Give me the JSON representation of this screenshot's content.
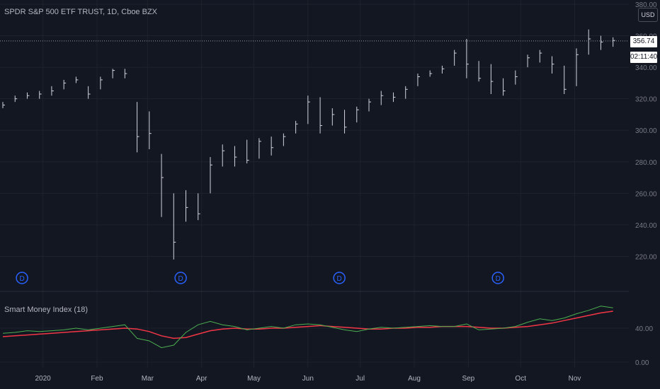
{
  "header": {
    "title": "SPDR S&P 500 ETF TRUST, 1D, Cboe BZX",
    "currency": "USD",
    "last_price": "356.74",
    "countdown": "02:11:40"
  },
  "indicator": {
    "title": "Smart Money Index (18)",
    "y_ticks": [
      "40.00",
      "0.00"
    ]
  },
  "colors": {
    "background": "#131722",
    "bars": "#d1d4dc",
    "smi_line": "#4caf50",
    "smi_ma": "#f23645",
    "dividend_marker": "#2962ff"
  },
  "dividend_markers": [
    "D",
    "D",
    "D",
    "D"
  ],
  "chart_data": [
    {
      "type": "ohlc",
      "x_ticks": [
        "2020",
        "Feb",
        "Mar",
        "Apr",
        "May",
        "Jun",
        "Jul",
        "Aug",
        "Sep",
        "Oct",
        "Nov"
      ],
      "y_ticks": [
        "380.00",
        "360.00",
        "340.00",
        "320.00",
        "300.00",
        "280.00",
        "260.00",
        "240.00",
        "220.00"
      ],
      "ylim": [
        200,
        380
      ],
      "last_value": 356.74,
      "dividend_dates": [
        "2019-12-20",
        "2020-03-20",
        "2020-06-19",
        "2020-09-18"
      ],
      "dates": [
        "2019-12-09",
        "2019-12-16",
        "2019-12-23",
        "2019-12-30",
        "2020-01-06",
        "2020-01-13",
        "2020-01-20",
        "2020-01-27",
        "2020-02-03",
        "2020-02-10",
        "2020-02-17",
        "2020-02-24",
        "2020-03-02",
        "2020-03-09",
        "2020-03-16",
        "2020-03-23",
        "2020-03-30",
        "2020-04-06",
        "2020-04-13",
        "2020-04-20",
        "2020-04-27",
        "2020-05-04",
        "2020-05-11",
        "2020-05-18",
        "2020-05-25",
        "2020-06-01",
        "2020-06-08",
        "2020-06-15",
        "2020-06-22",
        "2020-06-29",
        "2020-07-06",
        "2020-07-13",
        "2020-07-20",
        "2020-07-27",
        "2020-08-03",
        "2020-08-10",
        "2020-08-17",
        "2020-08-24",
        "2020-08-31",
        "2020-09-07",
        "2020-09-14",
        "2020-09-21",
        "2020-09-28",
        "2020-10-05",
        "2020-10-12",
        "2020-10-19",
        "2020-10-26",
        "2020-11-02",
        "2020-11-09",
        "2020-11-16",
        "2020-11-23"
      ],
      "close": [
        316,
        320,
        322,
        323,
        325,
        330,
        332,
        323,
        332,
        338,
        336,
        296,
        298,
        270,
        229,
        251,
        247,
        278,
        287,
        283,
        281,
        293,
        289,
        296,
        304,
        318,
        303,
        310,
        302,
        313,
        318,
        322,
        321,
        326,
        334,
        336,
        339,
        349,
        342,
        333,
        331,
        325,
        334,
        346,
        349,
        342,
        326,
        348,
        358,
        356,
        357
      ],
      "high": [
        318,
        322,
        324,
        325,
        328,
        332,
        334,
        328,
        334,
        339,
        339,
        318,
        312,
        285,
        260,
        262,
        260,
        283,
        291,
        290,
        294,
        295,
        296,
        298,
        306,
        322,
        321,
        314,
        313,
        315,
        320,
        325,
        324,
        328,
        336,
        338,
        341,
        351,
        358,
        344,
        342,
        333,
        338,
        348,
        351,
        347,
        341,
        352,
        364,
        360,
        359
      ],
      "low": [
        314,
        318,
        320,
        320,
        322,
        326,
        330,
        320,
        326,
        333,
        333,
        286,
        288,
        245,
        218,
        242,
        243,
        260,
        277,
        277,
        279,
        282,
        284,
        290,
        298,
        304,
        298,
        303,
        298,
        305,
        312,
        316,
        318,
        320,
        328,
        334,
        336,
        341,
        333,
        331,
        323,
        322,
        329,
        340,
        343,
        336,
        323,
        328,
        348,
        351,
        353
      ]
    },
    {
      "type": "line",
      "title": "Smart Money Index (18)",
      "ylim": [
        0,
        70
      ],
      "x": [
        "2019-12-09",
        "2019-12-16",
        "2019-12-23",
        "2019-12-30",
        "2020-01-06",
        "2020-01-13",
        "2020-01-20",
        "2020-01-27",
        "2020-02-03",
        "2020-02-10",
        "2020-02-17",
        "2020-02-24",
        "2020-03-02",
        "2020-03-09",
        "2020-03-16",
        "2020-03-23",
        "2020-03-30",
        "2020-04-06",
        "2020-04-13",
        "2020-04-20",
        "2020-04-27",
        "2020-05-04",
        "2020-05-11",
        "2020-05-18",
        "2020-05-25",
        "2020-06-01",
        "2020-06-08",
        "2020-06-15",
        "2020-06-22",
        "2020-06-29",
        "2020-07-06",
        "2020-07-13",
        "2020-07-20",
        "2020-07-27",
        "2020-08-03",
        "2020-08-10",
        "2020-08-17",
        "2020-08-24",
        "2020-08-31",
        "2020-09-07",
        "2020-09-14",
        "2020-09-21",
        "2020-09-28",
        "2020-10-05",
        "2020-10-12",
        "2020-10-19",
        "2020-10-26",
        "2020-11-02",
        "2020-11-09",
        "2020-11-16",
        "2020-11-23"
      ],
      "series": [
        {
          "values": [
            34,
            35,
            37,
            36,
            37,
            38,
            40,
            38,
            40,
            42,
            44,
            28,
            25,
            17,
            20,
            35,
            44,
            48,
            44,
            42,
            38,
            40,
            42,
            40,
            44,
            45,
            44,
            41,
            38,
            36,
            39,
            41,
            40,
            41,
            42,
            43,
            42,
            42,
            45,
            38,
            39,
            40,
            42,
            47,
            51,
            49,
            52,
            57,
            61,
            66,
            64
          ]
        },
        {
          "values": [
            30,
            31,
            32,
            33,
            34,
            35,
            36,
            37,
            38,
            39,
            40,
            39,
            36,
            31,
            28,
            29,
            33,
            37,
            39,
            40,
            39,
            39,
            40,
            40,
            41,
            42,
            43,
            42,
            41,
            40,
            39,
            39,
            40,
            40,
            41,
            41,
            42,
            42,
            42,
            41,
            40,
            40,
            41,
            42,
            44,
            46,
            49,
            52,
            55,
            58,
            60
          ]
        }
      ]
    }
  ]
}
